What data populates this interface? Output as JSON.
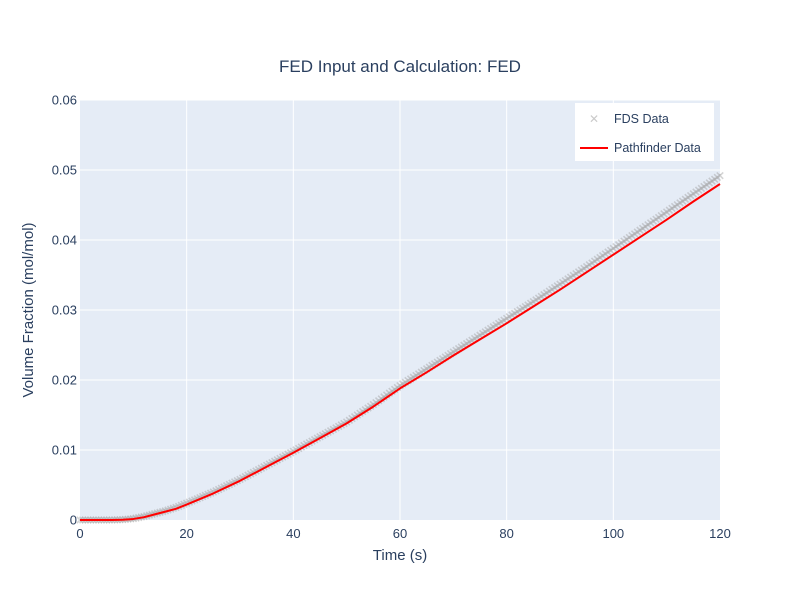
{
  "chart_data": {
    "type": "line",
    "title": "FED Input and Calculation: FED",
    "xlabel": "Time (s)",
    "ylabel": "Volume Fraction (mol/mol)",
    "xlim": [
      0,
      120
    ],
    "ylim": [
      0,
      0.06
    ],
    "x_ticks": [
      "0",
      "20",
      "40",
      "60",
      "80",
      "100",
      "120"
    ],
    "y_ticks": [
      "0",
      "0.01",
      "0.02",
      "0.03",
      "0.04",
      "0.05",
      "0.06"
    ],
    "grid": true,
    "legend_position": "top-right",
    "series": [
      {
        "name": "FDS Data",
        "marker": "x",
        "color": "#a0a0a0",
        "x": [
          0,
          2,
          4,
          6,
          8,
          10,
          12,
          14,
          16,
          18,
          20,
          25,
          30,
          35,
          40,
          45,
          50,
          55,
          60,
          65,
          70,
          75,
          80,
          85,
          90,
          95,
          100,
          105,
          110,
          115,
          120
        ],
        "y": [
          0,
          0,
          0,
          0,
          5e-05,
          0.0002,
          0.0005,
          0.0009,
          0.0013,
          0.0018,
          0.0024,
          0.004,
          0.0058,
          0.0078,
          0.0098,
          0.0119,
          0.014,
          0.0165,
          0.0192,
          0.0216,
          0.024,
          0.0264,
          0.0288,
          0.0312,
          0.0337,
          0.0362,
          0.0388,
          0.0414,
          0.044,
          0.0466,
          0.0492
        ]
      },
      {
        "name": "Pathfinder Data",
        "marker": "line",
        "color": "#ff0000",
        "x": [
          0,
          2,
          4,
          6,
          8,
          10,
          12,
          14,
          16,
          18,
          20,
          25,
          30,
          35,
          40,
          45,
          50,
          55,
          60,
          65,
          70,
          75,
          80,
          85,
          90,
          95,
          100,
          105,
          110,
          115,
          120
        ],
        "y": [
          0,
          0,
          0,
          0,
          3e-05,
          0.00015,
          0.0004,
          0.0008,
          0.0012,
          0.0016,
          0.0022,
          0.0038,
          0.0056,
          0.0076,
          0.0096,
          0.0117,
          0.0138,
          0.0162,
          0.0188,
          0.0211,
          0.0235,
          0.0258,
          0.0281,
          0.0305,
          0.0329,
          0.0354,
          0.0379,
          0.0404,
          0.0429,
          0.0455,
          0.048
        ]
      }
    ]
  },
  "colors": {
    "plot_bg": "#e5ecf6",
    "grid": "#ffffff",
    "text": "#2a3f5f",
    "fds": "#a0a0a0",
    "pathfinder": "#ff0000"
  }
}
